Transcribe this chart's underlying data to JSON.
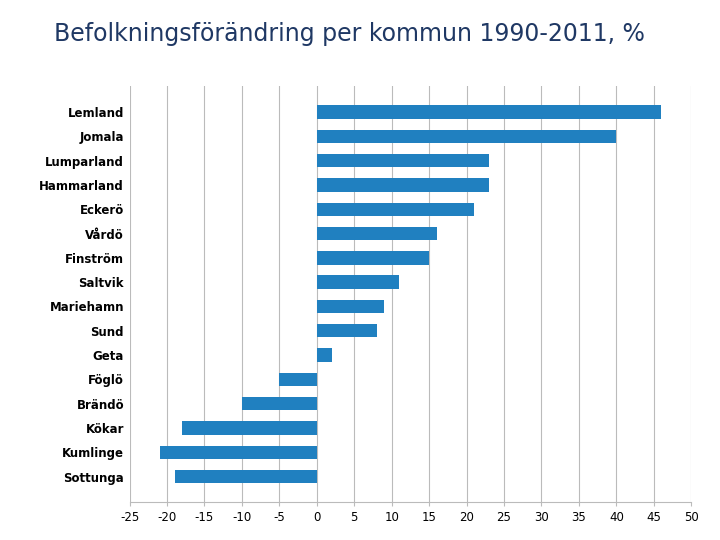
{
  "title": "Befolkningsförändring per kommun 1990-2011, %",
  "categories": [
    "Sottunga",
    "Kumlinge",
    "Kökar",
    "Brändö",
    "Föglö",
    "Geta",
    "Sund",
    "Mariehamn",
    "Saltvik",
    "Finström",
    "Vårdö",
    "Eckerö",
    "Hammarland",
    "Lumparland",
    "Jomala",
    "Lemland"
  ],
  "values": [
    -19,
    -21,
    -18,
    -10,
    -5,
    2,
    8,
    9,
    11,
    15,
    16,
    21,
    23,
    23,
    40,
    46
  ],
  "bar_color": "#2080c0",
  "xlim": [
    -25,
    50
  ],
  "xticks": [
    -25,
    -20,
    -15,
    -10,
    -5,
    0,
    5,
    10,
    15,
    20,
    25,
    30,
    35,
    40,
    45,
    50
  ],
  "title_color": "#1f3864",
  "title_fontsize": 17,
  "label_fontsize": 8.5,
  "tick_fontsize": 8.5,
  "background_color": "#ffffff",
  "grid_color": "#bbbbbb"
}
